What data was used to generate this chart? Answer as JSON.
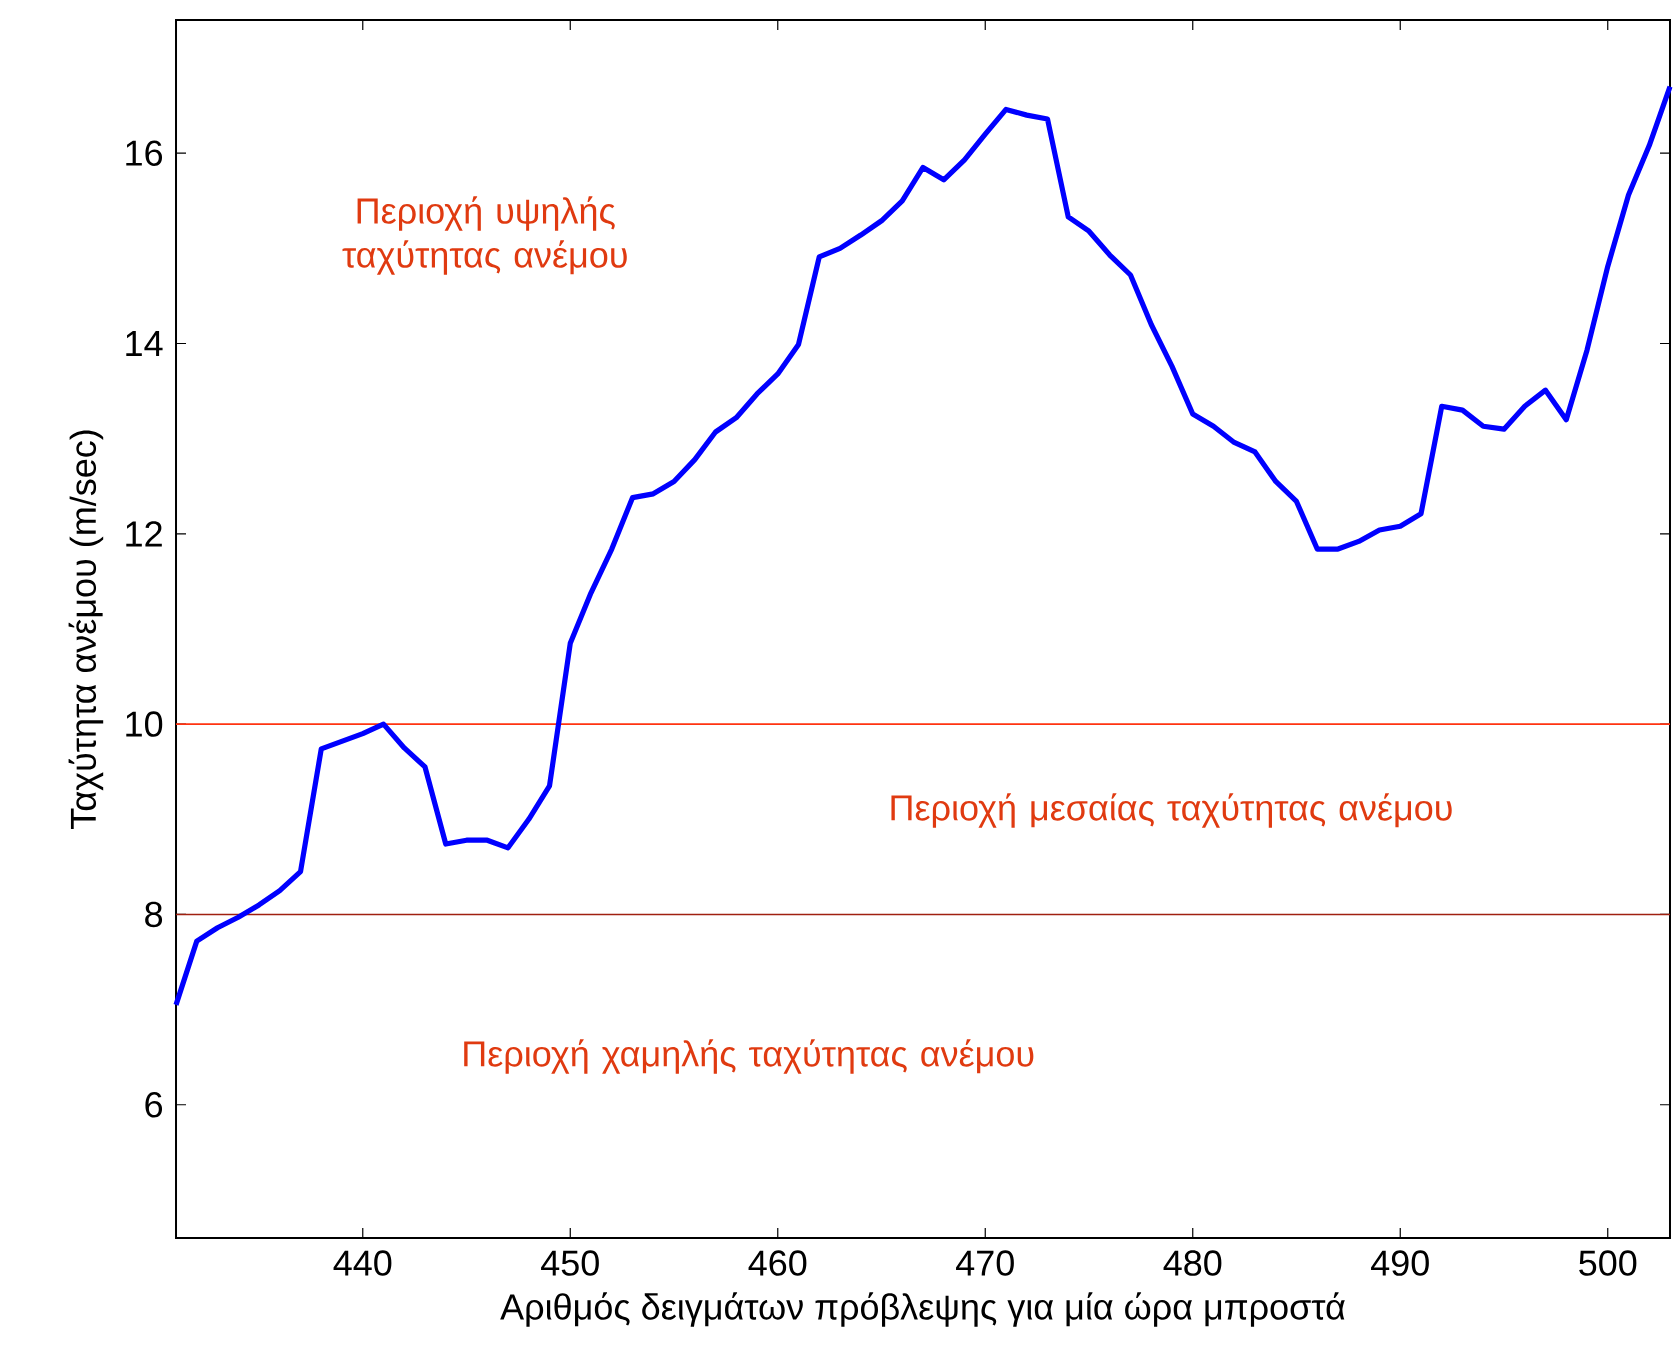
{
  "chart_data": {
    "type": "line",
    "xlabel": "Αριθμός δειγμάτων πρόβλεψης για μία ώρα μπροστά",
    "ylabel": "Ταχύτητα ανέμου (m/sec)",
    "x": [
      431,
      432,
      433,
      434,
      435,
      436,
      437,
      438,
      439,
      440,
      441,
      442,
      443,
      444,
      445,
      446,
      447,
      448,
      449,
      450,
      451,
      452,
      453,
      454,
      455,
      456,
      457,
      458,
      459,
      460,
      461,
      462,
      463,
      464,
      465,
      466,
      467,
      468,
      469,
      470,
      471,
      472,
      473,
      474,
      475,
      476,
      477,
      478,
      479,
      480,
      481,
      482,
      483,
      484,
      485,
      486,
      487,
      488,
      489,
      490,
      491,
      492,
      493,
      494,
      495,
      496,
      497,
      498,
      499,
      500,
      501,
      502,
      503
    ],
    "series": [
      {
        "color": "#0000ff",
        "values": [
          7.05,
          7.72,
          7.86,
          7.97,
          8.1,
          8.25,
          8.45,
          9.74,
          9.82,
          9.9,
          10.0,
          9.75,
          9.55,
          8.74,
          8.78,
          8.78,
          8.7,
          9.0,
          9.35,
          10.85,
          11.38,
          11.84,
          12.38,
          12.42,
          12.55,
          12.78,
          13.07,
          13.22,
          13.47,
          13.68,
          13.99,
          14.91,
          15.0,
          15.14,
          15.29,
          15.5,
          15.85,
          15.72,
          15.93,
          16.2,
          16.46,
          16.4,
          16.36,
          15.33,
          15.18,
          14.93,
          14.72,
          14.2,
          13.76,
          13.26,
          13.13,
          12.96,
          12.86,
          12.55,
          12.34,
          11.84,
          11.84,
          11.92,
          12.04,
          12.08,
          12.21,
          13.34,
          13.3,
          13.13,
          13.1,
          13.34,
          13.51,
          13.2,
          13.93,
          14.81,
          15.56,
          16.08,
          16.7
        ]
      }
    ],
    "xlim": [
      431,
      503
    ],
    "ylim": [
      4.6,
      17.4
    ],
    "xticks": [
      440,
      450,
      460,
      470,
      480,
      490,
      500
    ],
    "yticks": [
      6,
      8,
      10,
      12,
      14,
      16
    ],
    "grid": false,
    "marker": "none",
    "line_style": "solid",
    "ref_lines": [
      {
        "axis": "y",
        "value": 10,
        "color": "#ff3311"
      },
      {
        "axis": "y",
        "value": 8,
        "color": "#a02010"
      }
    ],
    "annotations": [
      "Περιοχή υψηλής ταχύτητας ανέμου",
      "Περιοχή μεσαίας ταχύτητας ανέμου",
      "Περιοχή χαμηλής ταχύτητας ανέμου"
    ]
  }
}
